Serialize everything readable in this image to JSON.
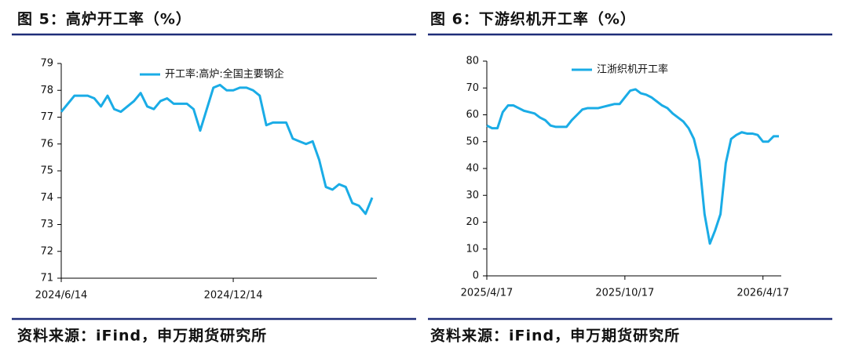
{
  "chart_data": [
    {
      "type": "line",
      "title": "图 5：高炉开工率（%）",
      "source": "资料来源：iFind，申万期货研究所",
      "categories": [
        "2024/6/14",
        null,
        null,
        null,
        null,
        null,
        null,
        null,
        null,
        null,
        null,
        null,
        null,
        null,
        null,
        null,
        null,
        null,
        null,
        null,
        null,
        null,
        null,
        null,
        null,
        null,
        "2024/12/14",
        null,
        null,
        null,
        null,
        null,
        null,
        null,
        null,
        null,
        null,
        null,
        null,
        null,
        null,
        null,
        null,
        null,
        null,
        null,
        null,
        null
      ],
      "series": [
        {
          "name": "开工率:高炉:全国主要钢企",
          "color": "#1aace6",
          "values": [
            77.2,
            77.5,
            77.8,
            77.8,
            77.8,
            77.7,
            77.4,
            77.8,
            77.3,
            77.2,
            77.4,
            77.6,
            77.9,
            77.4,
            77.3,
            77.6,
            77.7,
            77.5,
            77.5,
            77.5,
            77.3,
            76.5,
            77.3,
            78.1,
            78.2,
            78.0,
            78.0,
            78.1,
            78.1,
            78.0,
            77.8,
            76.7,
            76.8,
            76.8,
            76.8,
            76.2,
            76.1,
            76.0,
            76.1,
            75.4,
            74.4,
            74.3,
            74.5,
            74.4,
            73.8,
            73.7,
            73.4,
            74.0
          ]
        }
      ],
      "ylim": [
        71,
        79
      ],
      "yticks": [
        71,
        72,
        73,
        74,
        75,
        76,
        77,
        78,
        79
      ],
      "legend": "top"
    },
    {
      "type": "line",
      "title": "图 6：下游织机开工率（%）",
      "source": "资料来源：iFind，申万期货研究所",
      "categories": [
        "2025/4/17",
        null,
        null,
        null,
        null,
        null,
        null,
        null,
        null,
        null,
        null,
        null,
        null,
        null,
        null,
        null,
        null,
        null,
        null,
        null,
        null,
        null,
        null,
        null,
        null,
        null,
        "2025/10/17",
        null,
        null,
        null,
        null,
        null,
        null,
        null,
        null,
        null,
        null,
        null,
        null,
        null,
        null,
        null,
        null,
        null,
        null,
        null,
        null,
        null,
        null,
        null,
        null,
        null,
        "2026/4/17",
        null,
        null,
        null
      ],
      "series": [
        {
          "name": "江浙织机开工率",
          "color": "#1aace6",
          "values": [
            56,
            55,
            55,
            61,
            63.5,
            63.5,
            62.5,
            61.5,
            61,
            60.5,
            59,
            58,
            56,
            55.5,
            55.5,
            55.5,
            58,
            60,
            62,
            62.5,
            62.5,
            62.5,
            63,
            63.5,
            64,
            64,
            66.5,
            69,
            69.5,
            68,
            67.5,
            66.5,
            65,
            63.5,
            62.5,
            60.5,
            59,
            57.5,
            55,
            51,
            43,
            23,
            12,
            17,
            23,
            42,
            51,
            52.5,
            53.5,
            53,
            53,
            52.5,
            50,
            50,
            52,
            52
          ]
        }
      ],
      "ylim": [
        0,
        80
      ],
      "yticks": [
        0,
        10,
        20,
        30,
        40,
        50,
        60,
        70,
        80
      ],
      "legend": "top"
    }
  ]
}
